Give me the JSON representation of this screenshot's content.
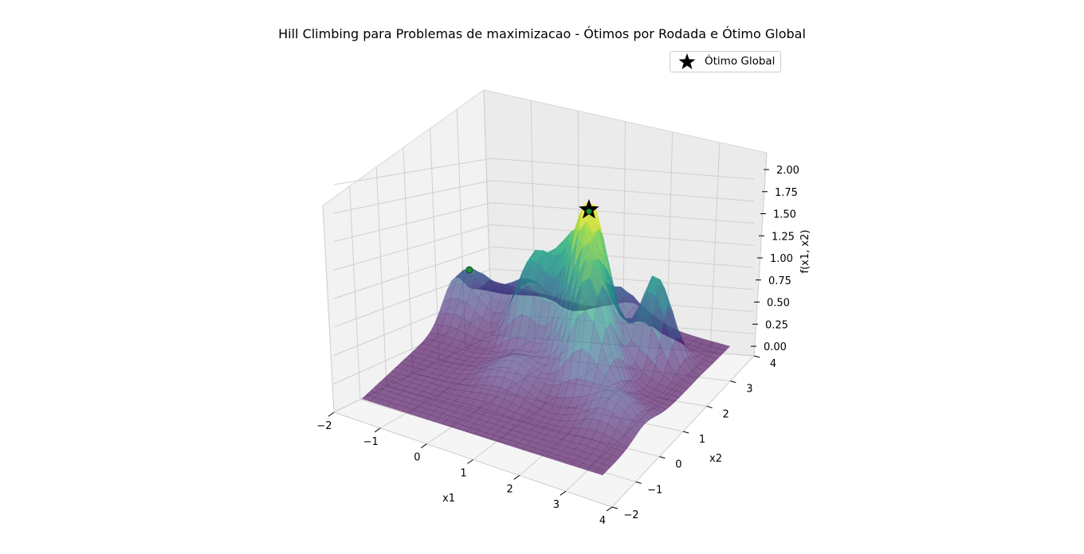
{
  "chart_data": {
    "type": "surface3d",
    "title": "Hill Climbing para Problemas de maximizacao - Ótimos por Rodada e Ótimo Global",
    "xlabel": "x1",
    "ylabel": "x2",
    "zlabel": "f(x1, x2)",
    "xlim": [
      -2,
      4
    ],
    "ylim": [
      -2,
      4
    ],
    "zlim": [
      0,
      2
    ],
    "x_ticks": [
      "−2",
      "−1",
      "0",
      "1",
      "2",
      "3",
      "4"
    ],
    "y_ticks": [
      "−2",
      "−1",
      "0",
      "1",
      "2",
      "3",
      "4"
    ],
    "z_ticks": [
      "0.00",
      "0.25",
      "0.50",
      "0.75",
      "1.00",
      "1.25",
      "1.50",
      "1.75",
      "2.00"
    ],
    "colormap": "viridis",
    "surface_alpha": 0.6,
    "legend": {
      "label": "Ótimo Global",
      "marker": "star",
      "color": "#000000",
      "placement": "top-right"
    },
    "global_optimum": {
      "x1": 1.7,
      "x2": 1.7,
      "f": 1.8
    },
    "round_optima": [
      {
        "x1": 1.7,
        "x2": 1.7,
        "f": 1.8
      },
      {
        "x1": -1.6,
        "x2": 2.3,
        "f": 0.55
      }
    ],
    "round_optimum_color": "#1e8c3a",
    "grid": true
  }
}
